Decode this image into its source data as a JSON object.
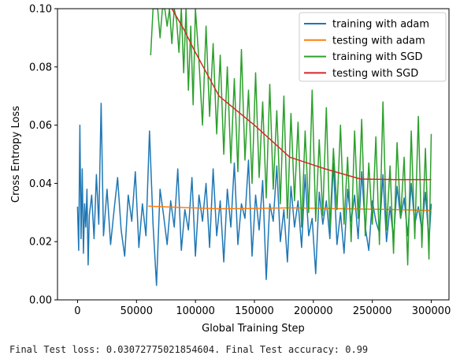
{
  "output_text": "Final Test loss: 0.03072775021854604. Final Test accuracy: 0.99",
  "chart_data": {
    "type": "line",
    "xlabel": "Global Training Step",
    "ylabel": "Cross Entropy Loss",
    "xlim": [
      -17000,
      315000
    ],
    "ylim": [
      0.0,
      0.1
    ],
    "xticks": [
      0,
      50000,
      100000,
      150000,
      200000,
      250000,
      300000
    ],
    "xtick_labels": [
      "0",
      "50000",
      "100000",
      "150000",
      "200000",
      "250000",
      "300000"
    ],
    "yticks": [
      0.0,
      0.02,
      0.04,
      0.06,
      0.08,
      0.1
    ],
    "ytick_labels": [
      "0.00",
      "0.02",
      "0.04",
      "0.06",
      "0.08",
      "0.10"
    ],
    "grid": false,
    "legend_position": "top-right",
    "series": [
      {
        "name": "training with adam",
        "color": "#1f77b4",
        "x": [
          0,
          1000,
          2000,
          3000,
          4000,
          5000,
          6000,
          7000,
          8000,
          9000,
          10000,
          12000,
          14000,
          16000,
          18000,
          20000,
          22000,
          25000,
          28000,
          31000,
          34000,
          37000,
          40000,
          43000,
          46000,
          49000,
          52000,
          55000,
          58000,
          61000,
          64000,
          67000,
          70000,
          73000,
          76000,
          79000,
          82000,
          85000,
          88000,
          91000,
          94000,
          97000,
          100000,
          103000,
          106000,
          109000,
          112000,
          115000,
          118000,
          121000,
          124000,
          127000,
          130000,
          133000,
          136000,
          139000,
          142000,
          145000,
          148000,
          151000,
          154000,
          157000,
          160000,
          163000,
          166000,
          169000,
          172000,
          175000,
          178000,
          181000,
          184000,
          187000,
          190000,
          193000,
          196000,
          199000,
          202000,
          205000,
          208000,
          211000,
          214000,
          217000,
          220000,
          223000,
          226000,
          229000,
          232000,
          235000,
          238000,
          241000,
          244000,
          247000,
          250000,
          253000,
          256000,
          259000,
          262000,
          265000,
          268000,
          271000,
          274000,
          277000,
          280000,
          283000,
          286000,
          289000,
          292000,
          295000,
          298000,
          300000
        ],
        "values": [
          0.032,
          0.017,
          0.06,
          0.021,
          0.045,
          0.016,
          0.033,
          0.025,
          0.038,
          0.012,
          0.029,
          0.036,
          0.021,
          0.043,
          0.026,
          0.0675,
          0.022,
          0.038,
          0.019,
          0.031,
          0.042,
          0.024,
          0.015,
          0.036,
          0.027,
          0.044,
          0.018,
          0.033,
          0.022,
          0.058,
          0.026,
          0.005,
          0.038,
          0.029,
          0.019,
          0.034,
          0.025,
          0.045,
          0.017,
          0.031,
          0.024,
          0.042,
          0.015,
          0.036,
          0.027,
          0.04,
          0.018,
          0.045,
          0.022,
          0.034,
          0.013,
          0.038,
          0.025,
          0.047,
          0.019,
          0.033,
          0.028,
          0.048,
          0.015,
          0.036,
          0.024,
          0.041,
          0.007,
          0.033,
          0.027,
          0.046,
          0.02,
          0.031,
          0.013,
          0.039,
          0.025,
          0.034,
          0.018,
          0.043,
          0.022,
          0.028,
          0.009,
          0.037,
          0.026,
          0.034,
          0.021,
          0.047,
          0.019,
          0.03,
          0.016,
          0.038,
          0.027,
          0.036,
          0.021,
          0.044,
          0.025,
          0.017,
          0.034,
          0.027,
          0.023,
          0.043,
          0.02,
          0.032,
          0.021,
          0.039,
          0.028,
          0.035,
          0.022,
          0.04,
          0.026,
          0.032,
          0.024,
          0.037,
          0.02,
          0.033
        ]
      },
      {
        "name": "testing with adam",
        "color": "#ff7f0e",
        "x": [
          60000,
          90000,
          120000,
          150000,
          180000,
          210000,
          240000,
          270000,
          300000
        ],
        "values": [
          0.0322,
          0.0317,
          0.0313,
          0.0314,
          0.0316,
          0.0314,
          0.0312,
          0.031,
          0.0307
        ]
      },
      {
        "name": "training with SGD",
        "color": "#2ca02c",
        "x": [
          62000,
          64000,
          66000,
          68000,
          70000,
          72000,
          74000,
          76000,
          78000,
          80000,
          82000,
          84000,
          86000,
          88000,
          90000,
          92000,
          94000,
          96000,
          98000,
          100000,
          103000,
          106000,
          109000,
          112000,
          115000,
          118000,
          121000,
          124000,
          127000,
          130000,
          133000,
          136000,
          139000,
          142000,
          145000,
          148000,
          151000,
          154000,
          157000,
          160000,
          163000,
          166000,
          169000,
          172000,
          175000,
          178000,
          181000,
          184000,
          187000,
          190000,
          193000,
          196000,
          199000,
          202000,
          205000,
          208000,
          211000,
          214000,
          217000,
          220000,
          223000,
          226000,
          229000,
          232000,
          235000,
          238000,
          241000,
          244000,
          247000,
          250000,
          253000,
          256000,
          259000,
          262000,
          265000,
          268000,
          271000,
          274000,
          277000,
          280000,
          283000,
          286000,
          289000,
          292000,
          295000,
          298000,
          300000
        ],
        "values": [
          0.084,
          0.1,
          0.1,
          0.1,
          0.09,
          0.1,
          0.1,
          0.094,
          0.1,
          0.088,
          0.1,
          0.096,
          0.085,
          0.1,
          0.078,
          0.1,
          0.072,
          0.094,
          0.067,
          0.1,
          0.082,
          0.06,
          0.094,
          0.063,
          0.088,
          0.057,
          0.084,
          0.05,
          0.08,
          0.047,
          0.076,
          0.044,
          0.086,
          0.048,
          0.072,
          0.04,
          0.078,
          0.042,
          0.068,
          0.035,
          0.074,
          0.038,
          0.065,
          0.033,
          0.07,
          0.028,
          0.064,
          0.034,
          0.061,
          0.025,
          0.058,
          0.03,
          0.072,
          0.027,
          0.055,
          0.029,
          0.066,
          0.024,
          0.052,
          0.031,
          0.06,
          0.026,
          0.049,
          0.02,
          0.058,
          0.028,
          0.062,
          0.022,
          0.047,
          0.026,
          0.056,
          0.019,
          0.068,
          0.024,
          0.046,
          0.016,
          0.054,
          0.028,
          0.049,
          0.012,
          0.058,
          0.021,
          0.063,
          0.018,
          0.052,
          0.014,
          0.057
        ]
      },
      {
        "name": "testing with SGD",
        "color": "#d62728",
        "x": [
          80000,
          90000,
          100000,
          120000,
          150000,
          180000,
          210000,
          240000,
          270000,
          300000
        ],
        "values": [
          0.1,
          0.093,
          0.085,
          0.07,
          0.06,
          0.049,
          0.045,
          0.0415,
          0.0413,
          0.0413
        ]
      }
    ]
  }
}
